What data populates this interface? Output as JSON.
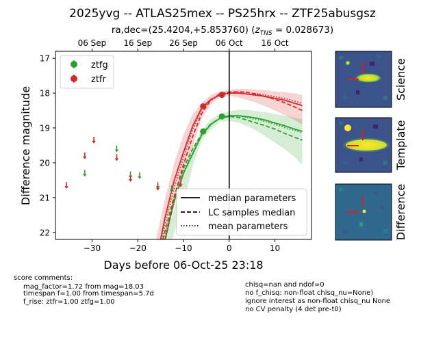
{
  "title": "2025yvg -- ATLAS25mex -- PS25hrx -- ZTF25abusgsz",
  "subtitle_prefix": "ra,dec=(25.4204,+5.853760) (",
  "subtitle_z": "z",
  "subtitle_z_sub": "TNS",
  "subtitle_suffix": " = 0.028673)",
  "chart_data": {
    "type": "scatter",
    "xlabel": "Days before 06-Oct-25 23:18",
    "ylabel": "Difference magnitude",
    "xlim": [
      -38,
      18
    ],
    "ylim": [
      22.2,
      16.8
    ],
    "y_inverted": true,
    "xticks": [
      -30,
      -20,
      -10,
      0,
      10
    ],
    "xtick_labels": [
      "−30",
      "−20",
      "−10",
      "0",
      "10"
    ],
    "yticks": [
      17,
      18,
      19,
      20,
      21,
      22
    ],
    "ytick_labels": [
      "17",
      "18",
      "19",
      "20",
      "21",
      "22"
    ],
    "top_axis": {
      "ticks": [
        -30,
        -20,
        -10,
        0,
        10
      ],
      "labels": [
        "06 Sep",
        "16 Sep",
        "26 Sep",
        "06 Oct",
        "16 Oct"
      ]
    },
    "vline_x": 0,
    "legend_position": "top-left",
    "series": [
      {
        "name": "ztfg",
        "color": "#2ca02c",
        "detections": [
          {
            "x": -5.7,
            "y": 19.1,
            "err": 0.07
          },
          {
            "x": -1.6,
            "y": 18.67,
            "err": 0.05
          }
        ],
        "upper_limits": [
          {
            "x": -31.6,
            "y": 20.3
          },
          {
            "x": -24.6,
            "y": 19.6
          },
          {
            "x": -21.6,
            "y": 20.35
          },
          {
            "x": -19.6,
            "y": 20.37
          },
          {
            "x": -15.6,
            "y": 20.65
          },
          {
            "x": -12.6,
            "y": 20.75
          }
        ],
        "median_curve": [
          [
            -14.0,
            22.2
          ],
          [
            -12.0,
            21.1
          ],
          [
            -10.0,
            20.3
          ],
          [
            -8.0,
            19.75
          ],
          [
            -6.0,
            19.2
          ],
          [
            -4.0,
            18.9
          ],
          [
            -2.0,
            18.72
          ],
          [
            0.0,
            18.65
          ],
          [
            2.0,
            18.65
          ],
          [
            4.0,
            18.68
          ],
          [
            6.0,
            18.72
          ],
          [
            8.0,
            18.78
          ],
          [
            10.0,
            18.86
          ],
          [
            12.0,
            18.93
          ],
          [
            14.0,
            19.02
          ],
          [
            16.0,
            19.1
          ]
        ],
        "lc_samples_median": [
          [
            -14.5,
            22.2
          ],
          [
            -12.0,
            20.95
          ],
          [
            -10.0,
            20.15
          ],
          [
            -8.0,
            19.6
          ],
          [
            -6.0,
            19.18
          ],
          [
            -4.0,
            18.88
          ],
          [
            -2.0,
            18.72
          ],
          [
            0.0,
            18.67
          ],
          [
            2.0,
            18.7
          ],
          [
            4.0,
            18.78
          ],
          [
            6.0,
            18.86
          ],
          [
            8.0,
            18.94
          ],
          [
            10.0,
            19.03
          ],
          [
            12.0,
            19.15
          ],
          [
            14.0,
            19.25
          ],
          [
            16.0,
            19.35
          ]
        ],
        "mean_curve": [
          [
            -14.3,
            22.2
          ],
          [
            -12.0,
            21.05
          ],
          [
            -10.0,
            20.25
          ],
          [
            -8.0,
            19.7
          ],
          [
            -6.0,
            19.2
          ],
          [
            -4.0,
            18.9
          ],
          [
            -2.0,
            18.72
          ],
          [
            0.0,
            18.65
          ],
          [
            2.0,
            18.66
          ],
          [
            4.0,
            18.7
          ],
          [
            6.0,
            18.76
          ],
          [
            8.0,
            18.82
          ],
          [
            10.0,
            18.9
          ],
          [
            12.0,
            18.98
          ],
          [
            14.0,
            19.06
          ],
          [
            16.0,
            19.14
          ]
        ],
        "band_upper": [
          [
            -14.0,
            22.2
          ],
          [
            -12.0,
            21.3
          ],
          [
            -10.0,
            20.35
          ],
          [
            -8.0,
            19.55
          ],
          [
            -6.0,
            19.05
          ],
          [
            -4.0,
            18.75
          ],
          [
            -2.0,
            18.6
          ],
          [
            0.0,
            18.52
          ],
          [
            2.0,
            18.48
          ],
          [
            4.0,
            18.48
          ],
          [
            6.0,
            18.52
          ],
          [
            8.0,
            18.55
          ],
          [
            10.0,
            18.6
          ],
          [
            12.0,
            18.64
          ],
          [
            14.0,
            18.7
          ],
          [
            16.0,
            18.75
          ]
        ],
        "band_lower": [
          [
            -12.5,
            22.2
          ],
          [
            -10.0,
            21.2
          ],
          [
            -8.0,
            20.1
          ],
          [
            -6.0,
            19.35
          ],
          [
            -4.0,
            19.05
          ],
          [
            -2.0,
            18.82
          ],
          [
            0.0,
            18.8
          ],
          [
            2.0,
            18.85
          ],
          [
            4.0,
            18.95
          ],
          [
            6.0,
            19.08
          ],
          [
            8.0,
            19.25
          ],
          [
            10.0,
            19.42
          ],
          [
            12.0,
            19.6
          ],
          [
            14.0,
            19.8
          ],
          [
            16.0,
            20.05
          ]
        ]
      },
      {
        "name": "ztfr",
        "color": "#d62728",
        "detections": [
          {
            "x": -5.7,
            "y": 18.38,
            "err": 0.05
          },
          {
            "x": -1.6,
            "y": 18.05,
            "err": 0.04
          }
        ],
        "upper_limits": [
          {
            "x": -35.6,
            "y": 20.65
          },
          {
            "x": -31.6,
            "y": 19.8
          },
          {
            "x": -29.6,
            "y": 19.35
          },
          {
            "x": -24.6,
            "y": 19.85
          },
          {
            "x": -21.6,
            "y": 20.45
          },
          {
            "x": -15.6,
            "y": 20.7
          },
          {
            "x": -10.6,
            "y": 20.6
          }
        ],
        "median_curve": [
          [
            -15.0,
            22.2
          ],
          [
            -14.0,
            21.55
          ],
          [
            -12.0,
            20.5
          ],
          [
            -10.0,
            19.7
          ],
          [
            -8.0,
            18.95
          ],
          [
            -6.0,
            18.42
          ],
          [
            -4.0,
            18.18
          ],
          [
            -2.0,
            18.05
          ],
          [
            0.0,
            18.0
          ],
          [
            2.0,
            18.0
          ],
          [
            4.0,
            18.03
          ],
          [
            6.0,
            18.06
          ],
          [
            8.0,
            18.1
          ],
          [
            10.0,
            18.15
          ],
          [
            12.0,
            18.2
          ],
          [
            14.0,
            18.28
          ],
          [
            16.0,
            18.36
          ]
        ],
        "lc_samples_median": [
          [
            -14.0,
            22.2
          ],
          [
            -12.0,
            21.0
          ],
          [
            -10.0,
            20.05
          ],
          [
            -8.0,
            19.25
          ],
          [
            -6.0,
            18.58
          ],
          [
            -4.0,
            18.2
          ],
          [
            -2.0,
            18.02
          ],
          [
            0.0,
            17.97
          ],
          [
            2.0,
            17.96
          ],
          [
            4.0,
            17.98
          ],
          [
            6.0,
            18.03
          ],
          [
            8.0,
            18.1
          ],
          [
            10.0,
            18.18
          ],
          [
            12.0,
            18.27
          ],
          [
            14.0,
            18.38
          ],
          [
            16.0,
            18.5
          ]
        ],
        "mean_curve": [
          [
            -14.7,
            22.2
          ],
          [
            -14.0,
            21.75
          ],
          [
            -12.0,
            20.7
          ],
          [
            -10.0,
            19.85
          ],
          [
            -8.0,
            19.05
          ],
          [
            -6.0,
            18.48
          ],
          [
            -4.0,
            18.2
          ],
          [
            -2.0,
            18.05
          ],
          [
            0.0,
            17.99
          ],
          [
            2.0,
            17.98
          ],
          [
            4.0,
            17.99
          ],
          [
            6.0,
            18.02
          ],
          [
            8.0,
            18.06
          ],
          [
            10.0,
            18.1
          ],
          [
            12.0,
            18.15
          ],
          [
            14.0,
            18.22
          ],
          [
            16.0,
            18.3
          ]
        ],
        "band_upper": [
          [
            -16.0,
            22.2
          ],
          [
            -14.0,
            21.0
          ],
          [
            -12.0,
            20.0
          ],
          [
            -10.0,
            19.2
          ],
          [
            -8.0,
            18.6
          ],
          [
            -6.0,
            18.28
          ],
          [
            -4.0,
            18.05
          ],
          [
            -2.0,
            17.95
          ],
          [
            0.0,
            17.9
          ],
          [
            2.0,
            17.88
          ],
          [
            4.0,
            17.88
          ],
          [
            6.0,
            17.9
          ],
          [
            8.0,
            17.92
          ],
          [
            10.0,
            17.95
          ],
          [
            12.0,
            17.97
          ],
          [
            14.0,
            18.0
          ],
          [
            16.0,
            18.05
          ]
        ],
        "band_lower": [
          [
            -14.0,
            22.2
          ],
          [
            -12.0,
            21.2
          ],
          [
            -10.0,
            20.4
          ],
          [
            -8.0,
            19.55
          ],
          [
            -6.0,
            18.72
          ],
          [
            -4.0,
            18.32
          ],
          [
            -2.0,
            18.12
          ],
          [
            0.0,
            18.08
          ],
          [
            2.0,
            18.12
          ],
          [
            4.0,
            18.2
          ],
          [
            6.0,
            18.28
          ],
          [
            8.0,
            18.38
          ],
          [
            10.0,
            18.5
          ],
          [
            12.0,
            18.62
          ],
          [
            14.0,
            18.75
          ],
          [
            16.0,
            18.9
          ]
        ]
      }
    ],
    "line_legend": [
      "median parameters",
      "LC samples median",
      "mean parameters"
    ]
  },
  "stamps": [
    {
      "label": "Science"
    },
    {
      "label": "Template"
    },
    {
      "label": "Difference"
    }
  ],
  "comments_header": "score comments:",
  "comments_left": [
    "mag_factor=1.72 from mag=18.03",
    "timespan f=1.00 from timespan=5.7d",
    "f_rise: ztfr=1.00 ztfg=1.00"
  ],
  "comments_right": [
    "chisq=nan and ndof=0",
    "no f_chisq: non-float chisq_nu=None)",
    "ignore interest as non-float chisq_nu None",
    "no CV penalty (4 det pre-t0)"
  ],
  "colors": {
    "green": "#2ca02c",
    "red": "#d62728",
    "stamp_bg": "#3b528b"
  }
}
